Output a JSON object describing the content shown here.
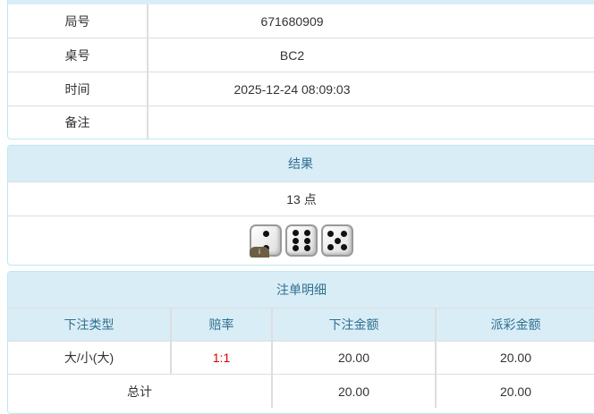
{
  "info": {
    "rows": [
      {
        "label": "局号",
        "value": "671680909"
      },
      {
        "label": "桌号",
        "value": "BC2"
      },
      {
        "label": "时间",
        "value": "2025-12-24 08:09:03"
      },
      {
        "label": "备注",
        "value": ""
      }
    ]
  },
  "result": {
    "title": "结果",
    "points": "13 点",
    "dice": [
      2,
      6,
      5
    ],
    "info_badge": "i"
  },
  "bets": {
    "title": "注单明细",
    "headers": [
      "下注类型",
      "赔率",
      "下注金额",
      "派彩金额"
    ],
    "rows": [
      {
        "type": "大/小(大)",
        "odds": "1:1",
        "amount": "20.00",
        "payout": "20.00"
      }
    ],
    "total": {
      "label": "总计",
      "amount": "20.00",
      "payout": "20.00"
    },
    "odds_color": "#e00000"
  }
}
